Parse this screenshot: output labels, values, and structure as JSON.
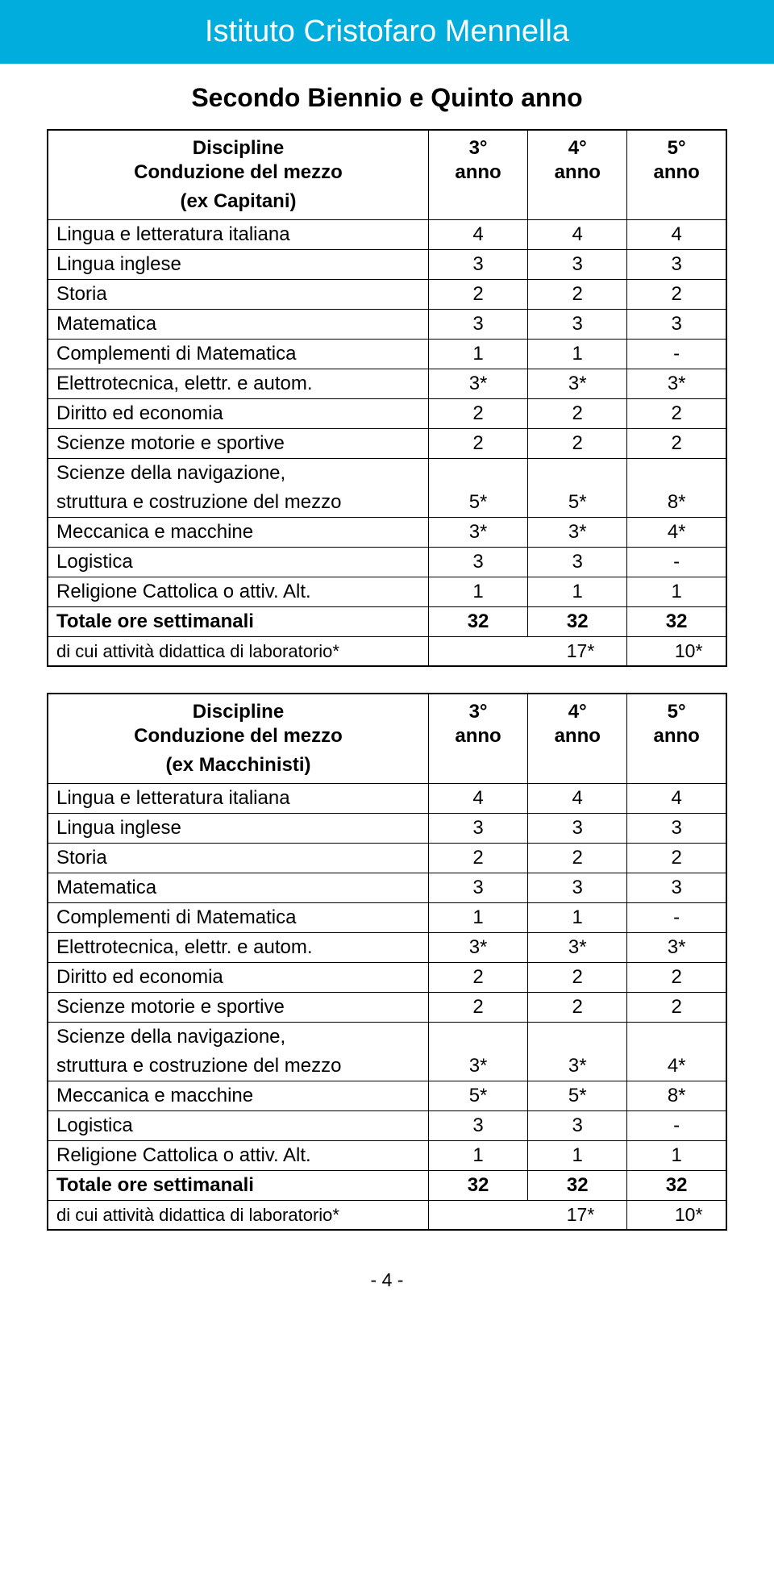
{
  "colors": {
    "header_bg": "#00addc",
    "header_text": "#ffffff",
    "body_bg": "#ffffff",
    "text": "#000000",
    "border": "#000000"
  },
  "typography": {
    "header_fontsize": 38,
    "subtitle_fontsize": 32,
    "cell_fontsize": 24,
    "footer_fontsize": 23
  },
  "header": "Istituto Cristofaro Mennella",
  "subtitle": "Secondo Biennio e Quinto anno",
  "year_cols": {
    "c1_top": "3°",
    "c1_bot": "anno",
    "c2_top": "4°",
    "c2_bot": "anno",
    "c3_top": "5°",
    "c3_bot": "anno"
  },
  "table1": {
    "header": {
      "line1": "Discipline",
      "line2": "Conduzione del mezzo",
      "line3": "(ex Capitani)"
    },
    "rows": {
      "r0": {
        "label": "Lingua e letteratura italiana",
        "c1": "4",
        "c2": "4",
        "c3": "4"
      },
      "r1": {
        "label": "Lingua inglese",
        "c1": "3",
        "c2": "3",
        "c3": "3"
      },
      "r2": {
        "label": "Storia",
        "c1": "2",
        "c2": "2",
        "c3": "2"
      },
      "r3": {
        "label": "Matematica",
        "c1": "3",
        "c2": "3",
        "c3": "3"
      },
      "r4": {
        "label": "Complementi di Matematica",
        "c1": "1",
        "c2": "1",
        "c3": "-"
      },
      "r5": {
        "label": "Elettrotecnica, elettr. e autom.",
        "c1": "3*",
        "c2": "3*",
        "c3": "3*"
      },
      "r6": {
        "label": "Diritto ed economia",
        "c1": "2",
        "c2": "2",
        "c3": "2"
      },
      "r7": {
        "label": "Scienze motorie e sportive",
        "c1": "2",
        "c2": "2",
        "c3": "2"
      },
      "r8": {
        "label_a": "Scienze della navigazione,",
        "label_b": "struttura e costruzione del mezzo",
        "c1": "5*",
        "c2": "5*",
        "c3": "8*"
      },
      "r9": {
        "label": "Meccanica e macchine",
        "c1": "3*",
        "c2": "3*",
        "c3": "4*"
      },
      "r10": {
        "label": "Logistica",
        "c1": "3",
        "c2": "3",
        "c3": "-"
      },
      "r11": {
        "label": "Religione Cattolica o attiv. Alt.",
        "c1": "1",
        "c2": "1",
        "c3": "1"
      }
    },
    "total": {
      "label": "Totale ore settimanali",
      "c1": "32",
      "c2": "32",
      "c3": "32"
    },
    "lab": {
      "label": "di cui attività didattica di laboratorio*",
      "v1": "17*",
      "v2": "10*"
    }
  },
  "table2": {
    "header": {
      "line1": "Discipline",
      "line2": "Conduzione del mezzo",
      "line3": "(ex Macchinisti)"
    },
    "rows": {
      "r0": {
        "label": "Lingua e letteratura italiana",
        "c1": "4",
        "c2": "4",
        "c3": "4"
      },
      "r1": {
        "label": "Lingua inglese",
        "c1": "3",
        "c2": "3",
        "c3": "3"
      },
      "r2": {
        "label": "Storia",
        "c1": "2",
        "c2": "2",
        "c3": "2"
      },
      "r3": {
        "label": "Matematica",
        "c1": "3",
        "c2": "3",
        "c3": "3"
      },
      "r4": {
        "label": "Complementi di Matematica",
        "c1": "1",
        "c2": "1",
        "c3": "-"
      },
      "r5": {
        "label": "Elettrotecnica, elettr. e autom.",
        "c1": "3*",
        "c2": "3*",
        "c3": "3*"
      },
      "r6": {
        "label": "Diritto ed economia",
        "c1": "2",
        "c2": "2",
        "c3": "2"
      },
      "r7": {
        "label": "Scienze motorie e sportive",
        "c1": "2",
        "c2": "2",
        "c3": "2"
      },
      "r8": {
        "label_a": "Scienze della navigazione,",
        "label_b": "struttura e costruzione del mezzo",
        "c1": "3*",
        "c2": "3*",
        "c3": "4*"
      },
      "r9": {
        "label": "Meccanica e macchine",
        "c1": "5*",
        "c2": "5*",
        "c3": "8*"
      },
      "r10": {
        "label": "Logistica",
        "c1": "3",
        "c2": "3",
        "c3": "-"
      },
      "r11": {
        "label": "Religione Cattolica o attiv. Alt.",
        "c1": "1",
        "c2": "1",
        "c3": "1"
      }
    },
    "total": {
      "label": "Totale ore settimanali",
      "c1": "32",
      "c2": "32",
      "c3": "32"
    },
    "lab": {
      "label": "di cui attività didattica di laboratorio*",
      "v1": "17*",
      "v2": "10*"
    }
  },
  "page_number": "- 4 -"
}
